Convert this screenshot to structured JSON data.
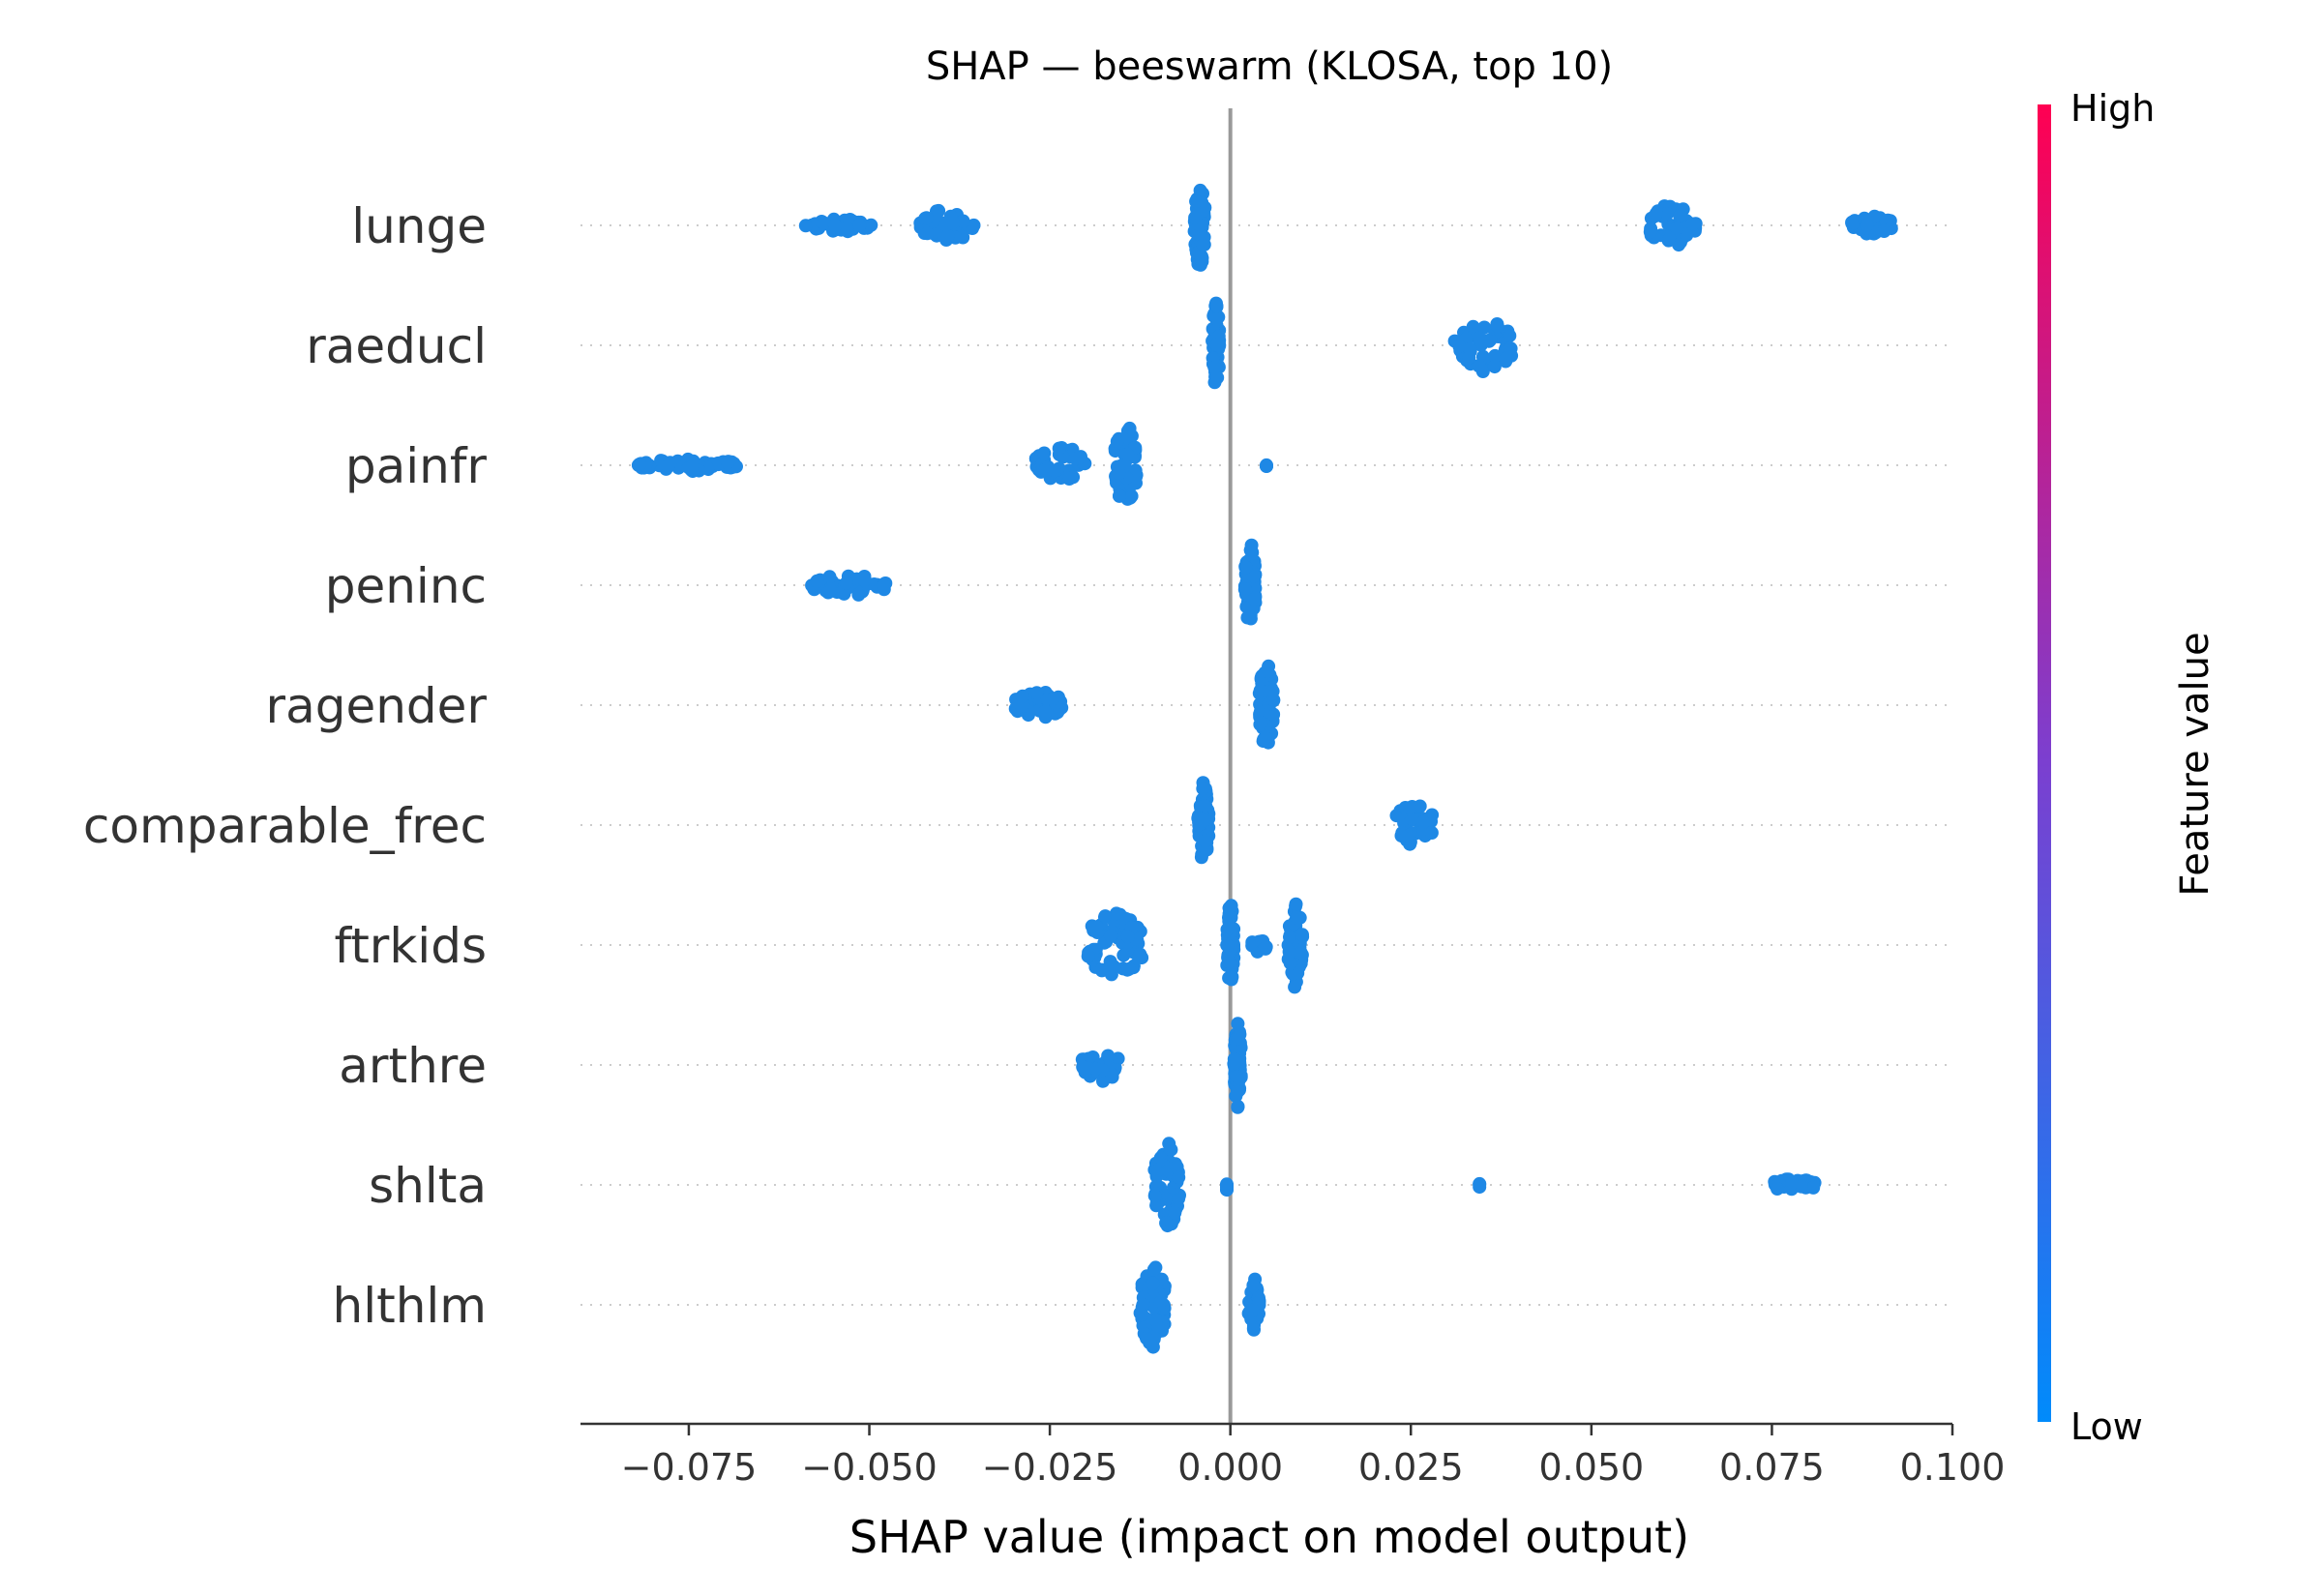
{
  "chart_data": {
    "type": "scatter",
    "title": "SHAP — beeswarm (KLOSA, top 10)",
    "xlabel": "SHAP value (impact on model output)",
    "xlim": [
      -0.09,
      0.1
    ],
    "xticks": [
      -0.075,
      -0.05,
      -0.025,
      0.0,
      0.025,
      0.05,
      0.075,
      0.1
    ],
    "xtick_labels": [
      "−0.075",
      "−0.050",
      "−0.025",
      "0.000",
      "0.025",
      "0.050",
      "0.075",
      "0.100"
    ],
    "zero_line": 0.0,
    "grid": false,
    "features": [
      {
        "name": "lunge",
        "clusters": [
          {
            "x": [
              -0.059,
              -0.0495
            ],
            "spread": 0.12
          },
          {
            "x": [
              -0.043,
              -0.0355
            ],
            "spread": 0.3
          },
          {
            "x": [
              -0.005,
              -0.0035
            ],
            "spread": 0.8
          },
          {
            "x": [
              0.058,
              0.0645
            ],
            "spread": 0.4
          },
          {
            "x": [
              0.086,
              0.092
            ],
            "spread": 0.18
          }
        ]
      },
      {
        "name": "raeducl",
        "clusters": [
          {
            "x": [
              -0.0025,
              -0.0015
            ],
            "spread": 0.8
          },
          {
            "x": [
              0.031,
              0.039
            ],
            "spread": 0.5
          }
        ]
      },
      {
        "name": "painfr",
        "clusters": [
          {
            "x": [
              -0.082,
              -0.068
            ],
            "spread": 0.12
          },
          {
            "x": [
              -0.027,
              -0.02
            ],
            "spread": 0.35
          },
          {
            "x": [
              -0.016,
              -0.013
            ],
            "spread": 0.8
          },
          {
            "x": [
              0.005,
              0.005
            ],
            "spread": 0.05
          }
        ]
      },
      {
        "name": "peninc",
        "clusters": [
          {
            "x": [
              -0.058,
              -0.047
            ],
            "spread": 0.2
          },
          {
            "x": [
              0.002,
              0.0035
            ],
            "spread": 0.8
          }
        ]
      },
      {
        "name": "ragender",
        "clusters": [
          {
            "x": [
              -0.03,
              -0.023
            ],
            "spread": 0.25
          },
          {
            "x": [
              0.004,
              0.006
            ],
            "spread": 0.8
          }
        ]
      },
      {
        "name": "comparable_frec",
        "clusters": [
          {
            "x": [
              -0.0045,
              -0.003
            ],
            "spread": 0.8
          },
          {
            "x": [
              0.023,
              0.028
            ],
            "spread": 0.45
          }
        ]
      },
      {
        "name": "ftrkids",
        "clusters": [
          {
            "x": [
              -0.02,
              -0.012
            ],
            "spread": 0.6
          },
          {
            "x": [
              -0.0005,
              0.0005
            ],
            "spread": 0.8
          },
          {
            "x": [
              0.003,
              0.005
            ],
            "spread": 0.15
          },
          {
            "x": [
              0.008,
              0.01
            ],
            "spread": 0.8
          }
        ]
      },
      {
        "name": "arthre",
        "clusters": [
          {
            "x": [
              -0.0205,
              -0.0155
            ],
            "spread": 0.35
          },
          {
            "x": [
              0.0005,
              0.0015
            ],
            "spread": 0.8
          }
        ]
      },
      {
        "name": "shlta",
        "clusters": [
          {
            "x": [
              -0.0105,
              -0.007
            ],
            "spread": 0.8
          },
          {
            "x": [
              -0.0005,
              -0.0005
            ],
            "spread": 0.1
          },
          {
            "x": [
              0.0345,
              0.0345
            ],
            "spread": 0.05
          },
          {
            "x": [
              0.075,
              0.081
            ],
            "spread": 0.12
          }
        ]
      },
      {
        "name": "hlthlm",
        "clusters": [
          {
            "x": [
              -0.0125,
              -0.009
            ],
            "spread": 0.8
          },
          {
            "x": [
              0.0025,
              0.004
            ],
            "spread": 0.5
          }
        ]
      }
    ],
    "point_color": "#1e88e5",
    "colorbar": {
      "title": "Feature value",
      "high_label": "High",
      "low_label": "Low",
      "high_color": "#ff0052",
      "low_color": "#008bfb"
    }
  }
}
